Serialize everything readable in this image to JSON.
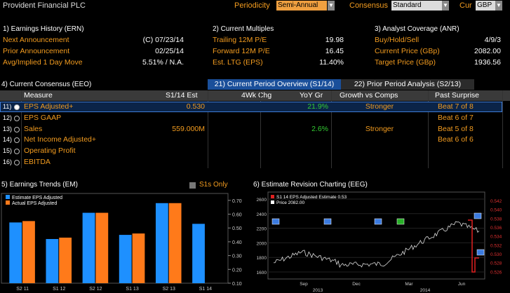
{
  "header": {
    "title": "Provident Financial PLC",
    "periodicity_label": "Periodicity",
    "periodicity_value": "Semi-Annual",
    "consensus_label": "Consensus",
    "consensus_value": "Standard",
    "cur_label": "Cur",
    "cur_value": "GBP"
  },
  "earnings_history": {
    "title": "1) Earnings History (ERN)",
    "rows": [
      {
        "label": "Next Announcement",
        "value": "(C)  07/23/14"
      },
      {
        "label": "Prior Announcement",
        "value": "02/25/14"
      },
      {
        "label": "Avg/Implied 1 Day Move",
        "value": "5.51% / N.A."
      }
    ]
  },
  "current_multiples": {
    "title": "2) Current Multiples",
    "rows": [
      {
        "label": "Trailing 12M P/E",
        "value": "19.98"
      },
      {
        "label": "Forward 12M P/E",
        "value": "16.45"
      },
      {
        "label": "Est. LTG (EPS)",
        "value": "11.40%"
      }
    ]
  },
  "analyst_coverage": {
    "title": "3) Analyst Coverage (ANR)",
    "rows": [
      {
        "label": "Buy/Hold/Sell",
        "value": "4/9/3"
      },
      {
        "label": "Current Price (GBp)",
        "value": "2082.00"
      },
      {
        "label": "Target Price (GBp)",
        "value": "1936.56"
      }
    ]
  },
  "consensus": {
    "title": "4) Current Consensus (EEO)",
    "tab_current": "21) Current Period Overview (S1/14)",
    "tab_prior": "22) Prior Period Analysis (S2/13)",
    "columns": [
      "Measure",
      "S1/14 Est",
      "4Wk Chg",
      "YoY Gr",
      "Growth vs Comps",
      "Past Surprise"
    ],
    "rows": [
      {
        "num": "11)",
        "measure": "EPS Adjusted+",
        "est": "0.530",
        "chg": "",
        "yoy": "21.9%",
        "growth": "Stronger",
        "surprise": "Beat 7 of 8"
      },
      {
        "num": "12)",
        "measure": "EPS GAAP",
        "est": "",
        "chg": "",
        "yoy": "",
        "growth": "",
        "surprise": "Beat 6 of 7"
      },
      {
        "num": "13)",
        "measure": "Sales",
        "est": "559.000M",
        "chg": "",
        "yoy": "2.6%",
        "growth": "Stronger",
        "surprise": "Beat 5 of 8"
      },
      {
        "num": "14)",
        "measure": "Net Income Adjusted+",
        "est": "",
        "chg": "",
        "yoy": "",
        "growth": "",
        "surprise": "Beat 6 of 6"
      },
      {
        "num": "15)",
        "measure": "Operating Profit",
        "est": "",
        "chg": "",
        "yoy": "",
        "growth": "",
        "surprise": ""
      },
      {
        "num": "16)",
        "measure": "EBITDA",
        "est": "",
        "chg": "",
        "yoy": "",
        "growth": "",
        "surprise": ""
      }
    ]
  },
  "earnings_trends": {
    "title": "5) Earnings Trends (EM)",
    "s1s_only": "S1s Only",
    "colors": {
      "estimate": "#1e90ff",
      "actual": "#ff7a1a"
    }
  },
  "revision_chart": {
    "title": "6) Estimate Revision Charting (EEG)",
    "legend": [
      {
        "label": "S1 14 EPS Adjusted Estimate  0.53",
        "color": "#e02020"
      },
      {
        "label": "Price                                2082.00",
        "color": "#ffffff"
      }
    ],
    "left_ticks": [
      "2600",
      "2400",
      "2200",
      "2000",
      "1800",
      "1600"
    ],
    "right_ticks": [
      "0.542",
      "0.540",
      "0.538",
      "0.536",
      "0.534",
      "0.532",
      "0.530",
      "0.528",
      "0.526"
    ],
    "x_ticks": [
      "Sep",
      "Dec",
      "Mar",
      "Jun"
    ],
    "years": [
      "2013",
      "2014"
    ]
  },
  "chart_data": {
    "type": "bar",
    "categories": [
      "S2 11",
      "S1 12",
      "S2 12",
      "S1 13",
      "S2 13",
      "S1 14"
    ],
    "series": [
      {
        "name": "Estimate EPS Adjusted",
        "values": [
          0.54,
          0.42,
          0.61,
          0.45,
          0.68,
          0.53
        ]
      },
      {
        "name": "Actual EPS Adjusted",
        "values": [
          0.55,
          0.43,
          0.61,
          0.46,
          0.68,
          null
        ]
      }
    ],
    "y_ticks": [
      "0.70",
      "0.60",
      "0.50",
      "0.40",
      "0.30",
      "0.20",
      "0.10"
    ],
    "ylim": [
      0.1,
      0.75
    ]
  }
}
